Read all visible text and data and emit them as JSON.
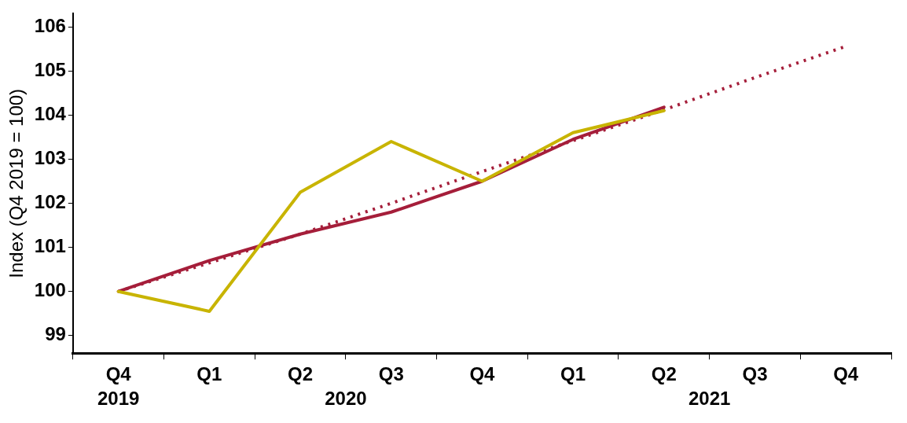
{
  "chart_data": {
    "type": "line",
    "ylabel": "Index (Q4 2019 = 100)",
    "categories": [
      "Q4",
      "Q1",
      "Q2",
      "Q3",
      "Q4",
      "Q1",
      "Q2",
      "Q3",
      "Q4"
    ],
    "annotations": [
      "2019",
      "2020",
      "2021"
    ],
    "series": [
      {
        "color": "#c8b400",
        "values": [
          100,
          99.55,
          102.25,
          103.4,
          102.5,
          103.6,
          104.1,
          null,
          null
        ]
      },
      {
        "color": "#a51e3a",
        "line_style": "dotted",
        "values": [
          100,
          100.65,
          101.3,
          102.0,
          102.72,
          103.42,
          104.12,
          104.85,
          105.56
        ]
      },
      {
        "color": "#a51e3a",
        "values": [
          100,
          100.7,
          101.3,
          101.8,
          102.5,
          103.45,
          104.18,
          null,
          null
        ]
      }
    ],
    "ylim": [
      98.6,
      106.3
    ],
    "yticks": [
      99,
      100,
      101,
      102,
      103,
      104,
      105,
      106
    ],
    "grid": false,
    "legend": false,
    "line_style": "solid",
    "marker": "none"
  }
}
